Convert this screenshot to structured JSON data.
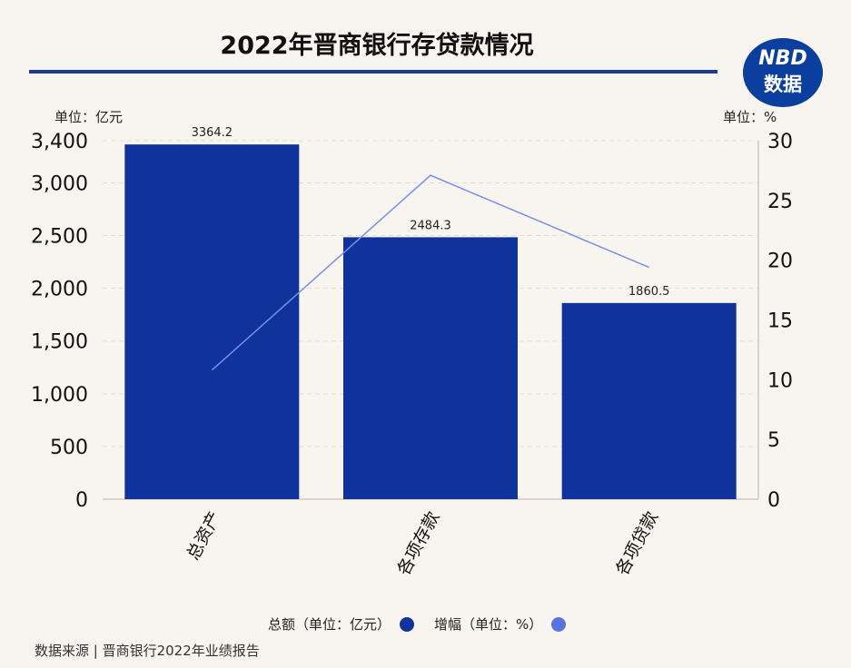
{
  "header": {
    "title": "2022年晋商银行存贷款情况",
    "logo_top": "NBD",
    "logo_bottom": "数据"
  },
  "units": {
    "left": "单位：亿元",
    "right": "单位：%"
  },
  "legend": {
    "total_label": "总额（单位：亿元）",
    "growth_label": "增幅（单位：%）"
  },
  "source": "数据来源 | 晋商银行2022年业绩报告",
  "colors": {
    "bar": "#0f339b",
    "line": "#7a8fe8",
    "growth_dot": "#5b73e2",
    "grid": "#e3ddd7"
  },
  "chart_data": {
    "type": "bar",
    "categories": [
      "总资产",
      "各项存款",
      "各项贷款"
    ],
    "series": [
      {
        "name": "总额（单位：亿元）",
        "type": "bar",
        "axis": "left",
        "values": [
          3364.2,
          2484.3,
          1860.5
        ]
      },
      {
        "name": "增幅（单位：%）",
        "type": "line",
        "axis": "right",
        "values": [
          10.8,
          27.1,
          19.4
        ]
      }
    ],
    "ylim": [
      0,
      3400
    ],
    "y2lim": [
      0,
      30
    ],
    "yticks": [
      "0",
      "500",
      "1,000",
      "1,500",
      "2,000",
      "2,500",
      "3,000",
      "3,400"
    ],
    "y2ticks": [
      "0",
      "5",
      "10",
      "15",
      "20",
      "25",
      "30"
    ],
    "data_labels": [
      "3364.2",
      "2484.3",
      "1860.5"
    ],
    "grid": true
  }
}
